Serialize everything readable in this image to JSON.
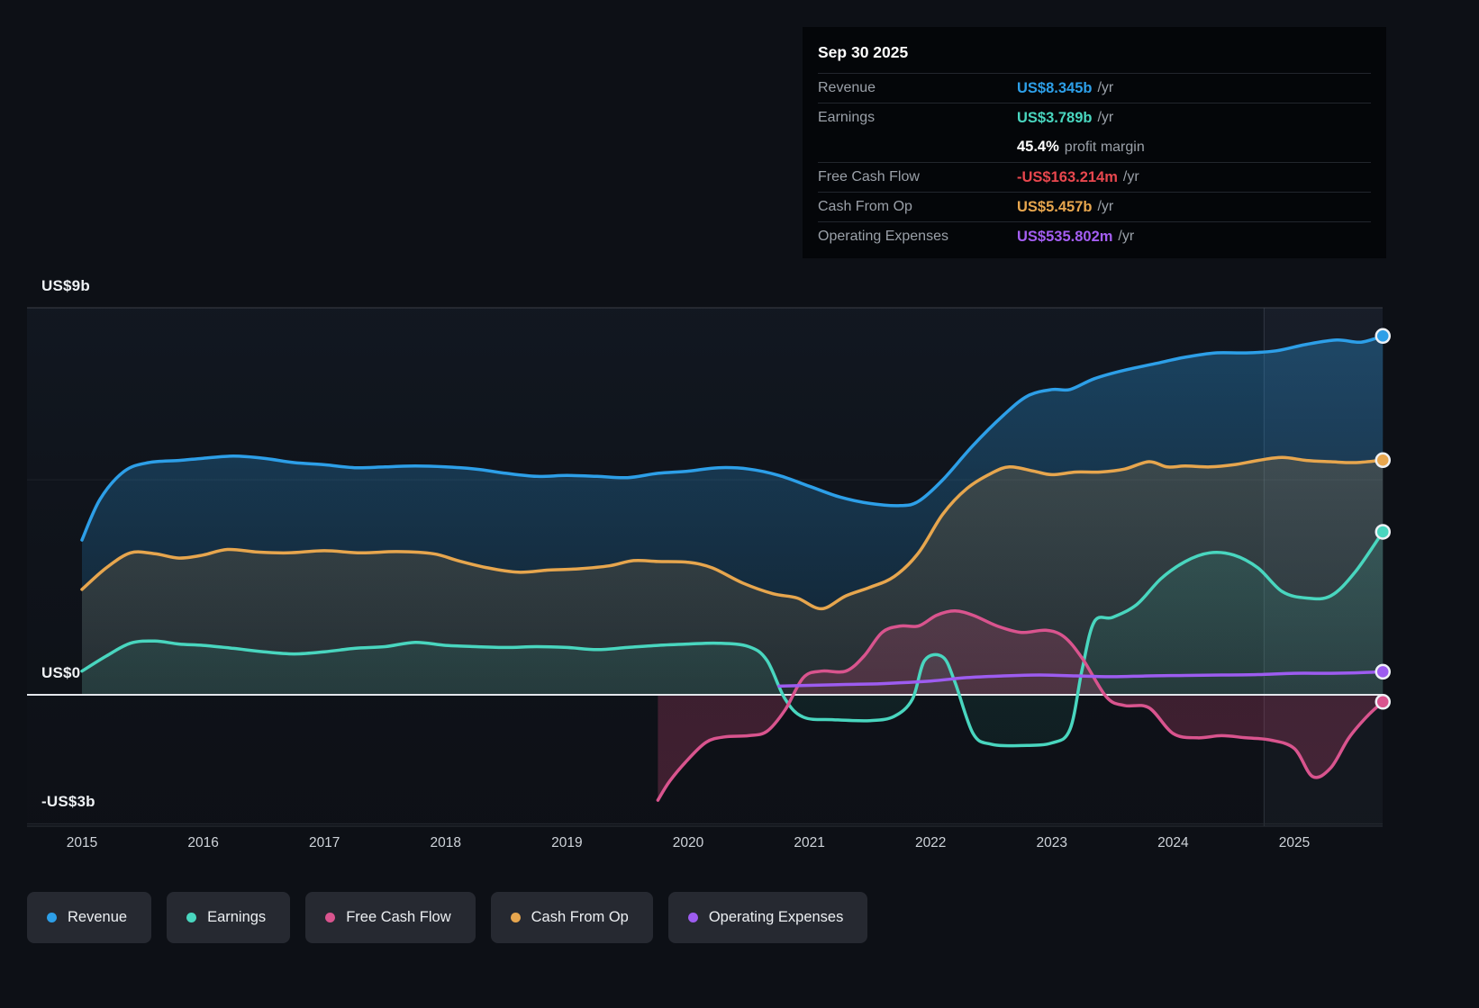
{
  "tooltip": {
    "date": "Sep 30 2025",
    "rows": [
      {
        "label": "Revenue",
        "value": "US$8.345b",
        "suffix": "/yr",
        "color": "#2d9fe8"
      },
      {
        "label": "Earnings",
        "value": "US$3.789b",
        "suffix": "/yr",
        "color": "#49d6bf"
      },
      {
        "label": "",
        "value": "45.4%",
        "suffix": "profit margin",
        "color": "#ffffff"
      },
      {
        "label": "Free Cash Flow",
        "value": "-US$163.214m",
        "suffix": "/yr",
        "color": "#e8474e"
      },
      {
        "label": "Cash From Op",
        "value": "US$5.457b",
        "suffix": "/yr",
        "color": "#e7a64e"
      },
      {
        "label": "Operating Expenses",
        "value": "US$535.802m",
        "suffix": "/yr",
        "color": "#a45ef2"
      }
    ]
  },
  "legend": {
    "items": [
      {
        "label": "Revenue",
        "color": "#2d9fe8"
      },
      {
        "label": "Earnings",
        "color": "#49d6bf"
      },
      {
        "label": "Free Cash Flow",
        "color": "#d9548e"
      },
      {
        "label": "Cash From Op",
        "color": "#e7a64e"
      },
      {
        "label": "Operating Expenses",
        "color": "#9d5cf0"
      }
    ]
  },
  "chart_data": {
    "type": "area",
    "title": "",
    "x_axis": {
      "ticks": [
        2015,
        2016,
        2017,
        2018,
        2019,
        2020,
        2021,
        2022,
        2023,
        2024,
        2025
      ],
      "range": [
        2014.55,
        2025.73
      ]
    },
    "y_axis": {
      "unit": "US$ billions",
      "range": [
        -3.05,
        9
      ],
      "gridlines": [
        {
          "value": 9,
          "label": "US$9b"
        },
        {
          "value": 5,
          "label": ""
        },
        {
          "value": 0,
          "label": "US$0"
        },
        {
          "value": -3,
          "label": "-US$3b"
        }
      ]
    },
    "divider_x": 2024.75,
    "series": [
      {
        "name": "Revenue",
        "color": "#2d9fe8",
        "fill": "#2d9fe8",
        "fill_top": 0.34,
        "fill_bottom": 0.04,
        "points": [
          [
            2015.0,
            3.6
          ],
          [
            2015.15,
            4.55
          ],
          [
            2015.35,
            5.2
          ],
          [
            2015.55,
            5.4
          ],
          [
            2015.8,
            5.45
          ],
          [
            2016.0,
            5.5
          ],
          [
            2016.25,
            5.55
          ],
          [
            2016.5,
            5.5
          ],
          [
            2016.75,
            5.4
          ],
          [
            2017.0,
            5.35
          ],
          [
            2017.25,
            5.28
          ],
          [
            2017.5,
            5.3
          ],
          [
            2017.75,
            5.32
          ],
          [
            2018.0,
            5.3
          ],
          [
            2018.25,
            5.25
          ],
          [
            2018.5,
            5.15
          ],
          [
            2018.75,
            5.08
          ],
          [
            2019.0,
            5.1
          ],
          [
            2019.25,
            5.08
          ],
          [
            2019.5,
            5.05
          ],
          [
            2019.75,
            5.15
          ],
          [
            2020.0,
            5.2
          ],
          [
            2020.25,
            5.28
          ],
          [
            2020.5,
            5.25
          ],
          [
            2020.75,
            5.1
          ],
          [
            2021.0,
            4.85
          ],
          [
            2021.25,
            4.6
          ],
          [
            2021.5,
            4.45
          ],
          [
            2021.75,
            4.4
          ],
          [
            2021.9,
            4.5
          ],
          [
            2022.1,
            5.0
          ],
          [
            2022.35,
            5.8
          ],
          [
            2022.6,
            6.5
          ],
          [
            2022.8,
            6.95
          ],
          [
            2023.0,
            7.1
          ],
          [
            2023.15,
            7.1
          ],
          [
            2023.35,
            7.35
          ],
          [
            2023.6,
            7.55
          ],
          [
            2023.85,
            7.7
          ],
          [
            2024.1,
            7.85
          ],
          [
            2024.35,
            7.95
          ],
          [
            2024.6,
            7.95
          ],
          [
            2024.85,
            8.0
          ],
          [
            2025.1,
            8.15
          ],
          [
            2025.35,
            8.25
          ],
          [
            2025.55,
            8.2
          ],
          [
            2025.73,
            8.345
          ]
        ]
      },
      {
        "name": "Cash From Op",
        "color": "#e7a64e",
        "fill": "#c98b3d",
        "fill_top": 0.26,
        "fill_bottom": 0.05,
        "points": [
          [
            2015.0,
            2.45
          ],
          [
            2015.2,
            2.95
          ],
          [
            2015.4,
            3.3
          ],
          [
            2015.6,
            3.28
          ],
          [
            2015.8,
            3.18
          ],
          [
            2016.0,
            3.25
          ],
          [
            2016.2,
            3.38
          ],
          [
            2016.45,
            3.32
          ],
          [
            2016.7,
            3.3
          ],
          [
            2017.0,
            3.35
          ],
          [
            2017.3,
            3.3
          ],
          [
            2017.6,
            3.33
          ],
          [
            2017.9,
            3.28
          ],
          [
            2018.1,
            3.12
          ],
          [
            2018.35,
            2.95
          ],
          [
            2018.6,
            2.85
          ],
          [
            2018.85,
            2.9
          ],
          [
            2019.1,
            2.93
          ],
          [
            2019.35,
            3.0
          ],
          [
            2019.55,
            3.12
          ],
          [
            2019.75,
            3.1
          ],
          [
            2020.0,
            3.08
          ],
          [
            2020.2,
            2.95
          ],
          [
            2020.45,
            2.6
          ],
          [
            2020.7,
            2.35
          ],
          [
            2020.9,
            2.25
          ],
          [
            2021.1,
            2.0
          ],
          [
            2021.3,
            2.3
          ],
          [
            2021.5,
            2.5
          ],
          [
            2021.7,
            2.75
          ],
          [
            2021.9,
            3.3
          ],
          [
            2022.1,
            4.2
          ],
          [
            2022.3,
            4.8
          ],
          [
            2022.5,
            5.15
          ],
          [
            2022.65,
            5.3
          ],
          [
            2022.85,
            5.2
          ],
          [
            2023.0,
            5.12
          ],
          [
            2023.2,
            5.18
          ],
          [
            2023.4,
            5.18
          ],
          [
            2023.6,
            5.25
          ],
          [
            2023.8,
            5.42
          ],
          [
            2023.95,
            5.3
          ],
          [
            2024.1,
            5.32
          ],
          [
            2024.3,
            5.3
          ],
          [
            2024.5,
            5.35
          ],
          [
            2024.7,
            5.45
          ],
          [
            2024.9,
            5.52
          ],
          [
            2025.1,
            5.45
          ],
          [
            2025.3,
            5.42
          ],
          [
            2025.5,
            5.4
          ],
          [
            2025.73,
            5.457
          ]
        ]
      },
      {
        "name": "Earnings",
        "color": "#49d6bf",
        "fill": "#2fbfa4",
        "fill_top": 0.22,
        "fill_bottom": 0.05,
        "points": [
          [
            2015.0,
            0.55
          ],
          [
            2015.2,
            0.9
          ],
          [
            2015.4,
            1.2
          ],
          [
            2015.6,
            1.25
          ],
          [
            2015.8,
            1.18
          ],
          [
            2016.0,
            1.15
          ],
          [
            2016.25,
            1.08
          ],
          [
            2016.5,
            1.0
          ],
          [
            2016.75,
            0.95
          ],
          [
            2017.0,
            1.0
          ],
          [
            2017.25,
            1.08
          ],
          [
            2017.5,
            1.12
          ],
          [
            2017.75,
            1.22
          ],
          [
            2018.0,
            1.15
          ],
          [
            2018.25,
            1.12
          ],
          [
            2018.5,
            1.1
          ],
          [
            2018.75,
            1.12
          ],
          [
            2019.0,
            1.1
          ],
          [
            2019.25,
            1.05
          ],
          [
            2019.5,
            1.1
          ],
          [
            2019.75,
            1.15
          ],
          [
            2020.0,
            1.18
          ],
          [
            2020.25,
            1.2
          ],
          [
            2020.5,
            1.12
          ],
          [
            2020.65,
            0.8
          ],
          [
            2020.8,
            -0.1
          ],
          [
            2020.95,
            -0.52
          ],
          [
            2021.2,
            -0.58
          ],
          [
            2021.5,
            -0.6
          ],
          [
            2021.7,
            -0.5
          ],
          [
            2021.85,
            -0.1
          ],
          [
            2021.95,
            0.8
          ],
          [
            2022.1,
            0.88
          ],
          [
            2022.2,
            0.3
          ],
          [
            2022.35,
            -0.9
          ],
          [
            2022.5,
            -1.15
          ],
          [
            2022.75,
            -1.18
          ],
          [
            2023.0,
            -1.12
          ],
          [
            2023.15,
            -0.8
          ],
          [
            2023.25,
            0.6
          ],
          [
            2023.35,
            1.7
          ],
          [
            2023.5,
            1.8
          ],
          [
            2023.7,
            2.1
          ],
          [
            2023.9,
            2.7
          ],
          [
            2024.1,
            3.1
          ],
          [
            2024.3,
            3.3
          ],
          [
            2024.5,
            3.25
          ],
          [
            2024.7,
            2.95
          ],
          [
            2024.9,
            2.4
          ],
          [
            2025.1,
            2.25
          ],
          [
            2025.3,
            2.3
          ],
          [
            2025.5,
            2.85
          ],
          [
            2025.73,
            3.789
          ]
        ]
      },
      {
        "name": "Free Cash Flow",
        "color": "#d9548e",
        "fill": "#b8436d",
        "fill_top": 0.2,
        "fill_bottom": 0.3,
        "points": [
          [
            2019.75,
            -2.45
          ],
          [
            2019.85,
            -2.0
          ],
          [
            2020.0,
            -1.5
          ],
          [
            2020.15,
            -1.1
          ],
          [
            2020.3,
            -0.98
          ],
          [
            2020.5,
            -0.95
          ],
          [
            2020.65,
            -0.85
          ],
          [
            2020.8,
            -0.35
          ],
          [
            2020.95,
            0.4
          ],
          [
            2021.1,
            0.55
          ],
          [
            2021.3,
            0.55
          ],
          [
            2021.45,
            0.9
          ],
          [
            2021.6,
            1.45
          ],
          [
            2021.75,
            1.6
          ],
          [
            2021.9,
            1.6
          ],
          [
            2022.05,
            1.85
          ],
          [
            2022.2,
            1.95
          ],
          [
            2022.35,
            1.85
          ],
          [
            2022.55,
            1.6
          ],
          [
            2022.75,
            1.45
          ],
          [
            2022.95,
            1.5
          ],
          [
            2023.1,
            1.35
          ],
          [
            2023.25,
            0.85
          ],
          [
            2023.45,
            -0.05
          ],
          [
            2023.6,
            -0.25
          ],
          [
            2023.8,
            -0.3
          ],
          [
            2024.0,
            -0.9
          ],
          [
            2024.2,
            -1.0
          ],
          [
            2024.4,
            -0.95
          ],
          [
            2024.6,
            -1.0
          ],
          [
            2024.8,
            -1.05
          ],
          [
            2025.0,
            -1.25
          ],
          [
            2025.15,
            -1.9
          ],
          [
            2025.3,
            -1.7
          ],
          [
            2025.45,
            -1.0
          ],
          [
            2025.6,
            -0.5
          ],
          [
            2025.73,
            -0.163
          ]
        ]
      },
      {
        "name": "Operating Expenses",
        "color": "#9d5cf0",
        "fill": "#9d5cf0",
        "fill_top": 0.0,
        "fill_bottom": 0.0,
        "points": [
          [
            2020.75,
            0.2
          ],
          [
            2021.0,
            0.22
          ],
          [
            2021.3,
            0.24
          ],
          [
            2021.6,
            0.26
          ],
          [
            2022.0,
            0.32
          ],
          [
            2022.3,
            0.4
          ],
          [
            2022.6,
            0.44
          ],
          [
            2022.9,
            0.46
          ],
          [
            2023.2,
            0.44
          ],
          [
            2023.5,
            0.42
          ],
          [
            2023.8,
            0.44
          ],
          [
            2024.1,
            0.45
          ],
          [
            2024.4,
            0.46
          ],
          [
            2024.7,
            0.47
          ],
          [
            2025.0,
            0.5
          ],
          [
            2025.3,
            0.5
          ],
          [
            2025.5,
            0.51
          ],
          [
            2025.73,
            0.536
          ]
        ]
      }
    ]
  }
}
